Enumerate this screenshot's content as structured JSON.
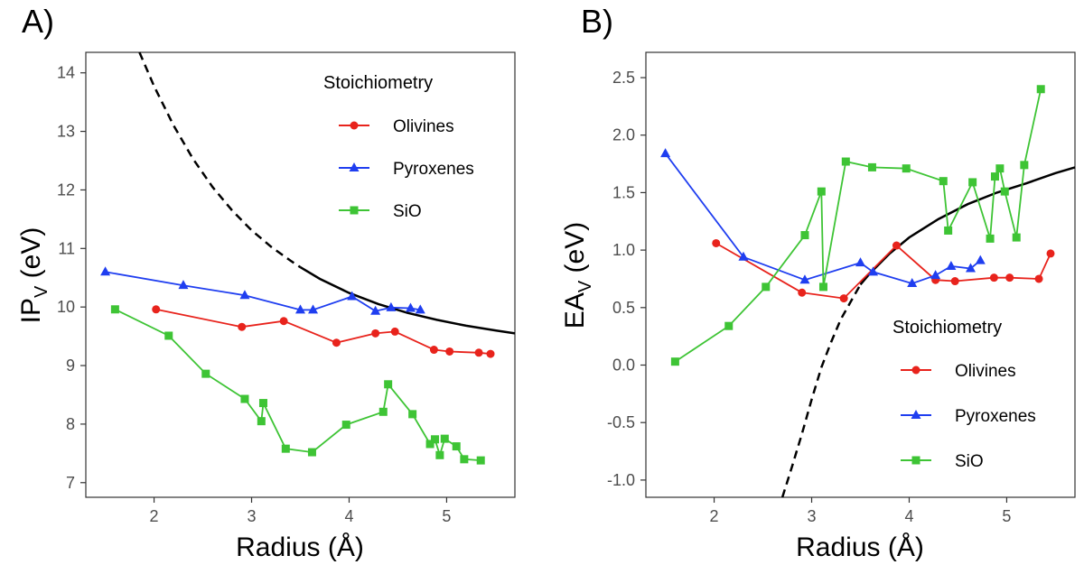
{
  "colors": {
    "olivines": "#e8231c",
    "pyroxenes": "#1f3ef0",
    "sio": "#3ec435",
    "curve": "#000000"
  },
  "chart_data": [
    {
      "panel": "A)",
      "type": "line",
      "ylabel_main": "IP",
      "ylabel_sub": "V",
      "ylabel_unit": " (eV)",
      "xlabel": "Radius (Å)",
      "xlim": [
        1.3,
        5.7
      ],
      "ylim": [
        6.75,
        14.35
      ],
      "xticks": [
        2,
        3,
        4,
        5
      ],
      "yticks": [
        7,
        8,
        9,
        10,
        11,
        12,
        13,
        14
      ],
      "legend_title": "Stoichiometry",
      "legend_position": "top-right",
      "series": [
        {
          "name": "Olivines",
          "marker": "circle",
          "x": [
            2.02,
            2.9,
            3.33,
            3.87,
            4.27,
            4.47,
            4.87,
            5.03,
            5.33,
            5.45
          ],
          "y": [
            9.96,
            9.66,
            9.76,
            9.39,
            9.55,
            9.58,
            9.27,
            9.24,
            9.22,
            9.2
          ]
        },
        {
          "name": "Pyroxenes",
          "marker": "triangle",
          "x": [
            1.5,
            2.3,
            2.93,
            3.5,
            3.63,
            4.03,
            4.27,
            4.43,
            4.63,
            4.73
          ],
          "y": [
            10.6,
            10.37,
            10.2,
            9.95,
            9.95,
            10.18,
            9.93,
            9.99,
            9.98,
            9.95
          ]
        },
        {
          "name": "SiO",
          "marker": "square",
          "x": [
            1.6,
            2.15,
            2.53,
            2.93,
            3.1,
            3.12,
            3.35,
            3.62,
            3.97,
            4.35,
            4.4,
            4.65,
            4.83,
            4.88,
            4.93,
            4.98,
            5.1,
            5.18,
            5.35
          ],
          "y": [
            9.96,
            9.51,
            8.86,
            8.43,
            8.05,
            8.36,
            7.58,
            7.52,
            7.99,
            8.21,
            8.68,
            8.17,
            7.66,
            7.74,
            7.47,
            7.75,
            7.62,
            7.4,
            7.38
          ]
        }
      ],
      "curve": {
        "solid_from_x": 3.5,
        "x": [
          1.85,
          2.0,
          2.2,
          2.4,
          2.6,
          2.8,
          3.0,
          3.2,
          3.4,
          3.5,
          3.7,
          4.0,
          4.3,
          4.6,
          4.9,
          5.2,
          5.5,
          5.7
        ],
        "y": [
          14.35,
          13.77,
          13.1,
          12.53,
          12.05,
          11.65,
          11.31,
          11.03,
          10.79,
          10.68,
          10.48,
          10.24,
          10.05,
          9.9,
          9.78,
          9.68,
          9.6,
          9.55
        ]
      }
    },
    {
      "panel": "B)",
      "type": "line",
      "ylabel_main": "EA",
      "ylabel_sub": "V",
      "ylabel_unit": "  (eV)",
      "xlabel": "Radius (Å)",
      "xlim": [
        1.3,
        5.7
      ],
      "ylim": [
        -1.15,
        2.72
      ],
      "xticks": [
        2,
        3,
        4,
        5
      ],
      "yticks": [
        -1.0,
        -0.5,
        0.0,
        0.5,
        1.0,
        1.5,
        2.0,
        2.5
      ],
      "ytick_labels": [
        "-1.0",
        "-0.5",
        "0.0",
        "0.5",
        "1.0",
        "1.5",
        "2.0",
        "2.5"
      ],
      "legend_title": "Stoichiometry",
      "legend_position": "bottom-right",
      "series": [
        {
          "name": "Olivines",
          "marker": "circle",
          "x": [
            2.02,
            2.9,
            3.33,
            3.87,
            4.27,
            4.47,
            4.87,
            5.03,
            5.33,
            5.45
          ],
          "y": [
            1.06,
            0.63,
            0.58,
            1.04,
            0.74,
            0.73,
            0.76,
            0.76,
            0.75,
            0.97
          ]
        },
        {
          "name": "Pyroxenes",
          "marker": "triangle",
          "x": [
            1.5,
            2.3,
            2.93,
            3.5,
            3.63,
            4.03,
            4.27,
            4.43,
            4.63,
            4.73
          ],
          "y": [
            1.84,
            0.94,
            0.74,
            0.89,
            0.81,
            0.71,
            0.78,
            0.86,
            0.84,
            0.91
          ]
        },
        {
          "name": "SiO",
          "marker": "square",
          "x": [
            1.6,
            2.15,
            2.53,
            2.93,
            3.1,
            3.12,
            3.35,
            3.62,
            3.97,
            4.35,
            4.4,
            4.65,
            4.83,
            4.88,
            4.93,
            4.98,
            5.1,
            5.18,
            5.35
          ],
          "y": [
            0.03,
            0.34,
            0.68,
            1.13,
            1.51,
            0.68,
            1.77,
            1.72,
            1.71,
            1.6,
            1.17,
            1.59,
            1.1,
            1.64,
            1.71,
            1.51,
            1.11,
            1.74,
            2.4
          ]
        }
      ],
      "curve": {
        "solid_from_x": 3.5,
        "x": [
          2.7,
          2.8,
          2.9,
          3.0,
          3.1,
          3.2,
          3.3,
          3.4,
          3.5,
          3.6,
          3.8,
          4.0,
          4.3,
          4.6,
          4.9,
          5.2,
          5.5,
          5.7
        ],
        "y": [
          -1.15,
          -0.88,
          -0.6,
          -0.3,
          -0.02,
          0.2,
          0.4,
          0.55,
          0.7,
          0.8,
          0.97,
          1.11,
          1.27,
          1.4,
          1.5,
          1.58,
          1.67,
          1.72
        ]
      }
    }
  ]
}
